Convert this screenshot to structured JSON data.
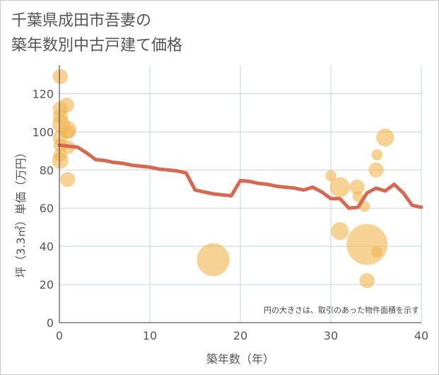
{
  "title_lines": [
    "千葉県成田市吾妻の",
    "築年数別中古戸建て価格"
  ],
  "colors": {
    "bubble": "#f0b44f",
    "line": "#d46a51",
    "grid": "#c5d3e0",
    "axis": "#333333",
    "text": "#555555"
  },
  "chart_data": {
    "type": "scatter",
    "title": "千葉県成田市吾妻の築年数別中古戸建て価格",
    "xlabel": "築年数（年）",
    "ylabel": "坪（3.3㎡）単価（万円）",
    "xlim": [
      0,
      40
    ],
    "ylim": [
      0,
      135
    ],
    "xticks": [
      0,
      10,
      20,
      30,
      40
    ],
    "yticks": [
      0,
      20,
      40,
      60,
      80,
      100,
      120
    ],
    "grid": true,
    "note": "円の大きさは、取引のあった物件面積を示す",
    "bubbles": [
      {
        "x": 0.1,
        "y": 129,
        "size": 3
      },
      {
        "x": 0.1,
        "y": 112,
        "size": 3
      },
      {
        "x": 0.1,
        "y": 108,
        "size": 3
      },
      {
        "x": 0.2,
        "y": 104,
        "size": 5
      },
      {
        "x": 0.1,
        "y": 97,
        "size": 3
      },
      {
        "x": 0.1,
        "y": 93,
        "size": 2
      },
      {
        "x": 0.1,
        "y": 88,
        "size": 2
      },
      {
        "x": 0.1,
        "y": 85,
        "size": 4
      },
      {
        "x": 0.8,
        "y": 114,
        "size": 3
      },
      {
        "x": 0.9,
        "y": 101,
        "size": 5
      },
      {
        "x": 1.0,
        "y": 100,
        "size": 2
      },
      {
        "x": 1.0,
        "y": 92,
        "size": 2
      },
      {
        "x": 0.9,
        "y": 75,
        "size": 3
      },
      {
        "x": 17,
        "y": 33,
        "size": 25
      },
      {
        "x": 30,
        "y": 77,
        "size": 1
      },
      {
        "x": 31,
        "y": 71,
        "size": 7
      },
      {
        "x": 31,
        "y": 48,
        "size": 5
      },
      {
        "x": 32.9,
        "y": 71,
        "size": 3
      },
      {
        "x": 33,
        "y": 66,
        "size": 1
      },
      {
        "x": 33.7,
        "y": 61,
        "size": 1
      },
      {
        "x": 34,
        "y": 41,
        "size": 42
      },
      {
        "x": 34,
        "y": 22,
        "size": 3
      },
      {
        "x": 35,
        "y": 80,
        "size": 3
      },
      {
        "x": 35.1,
        "y": 88,
        "size": 1
      },
      {
        "x": 35.1,
        "y": 37,
        "size": 1
      },
      {
        "x": 36,
        "y": 97,
        "size": 5
      }
    ],
    "trend_line": {
      "x": [
        0,
        1,
        2,
        3,
        4,
        5,
        6,
        7,
        8,
        9,
        10,
        11,
        12,
        13,
        14,
        15,
        16,
        17,
        18,
        19,
        20,
        21,
        22,
        23,
        24,
        25,
        26,
        27,
        28,
        29,
        30,
        31,
        32,
        33,
        34,
        35,
        36,
        37,
        38,
        39,
        40
      ],
      "y": [
        93,
        92.5,
        92,
        89,
        85.5,
        85,
        84,
        83.5,
        82.5,
        82,
        81.5,
        80.5,
        80,
        79.5,
        78.5,
        69.5,
        68.5,
        67.5,
        67,
        66.5,
        74.5,
        74,
        73,
        72.5,
        71.5,
        71,
        70.5,
        69.5,
        71,
        68.5,
        65,
        65,
        60,
        60.5,
        68,
        70.5,
        69,
        72.5,
        68,
        61.5,
        60.5
      ]
    }
  }
}
